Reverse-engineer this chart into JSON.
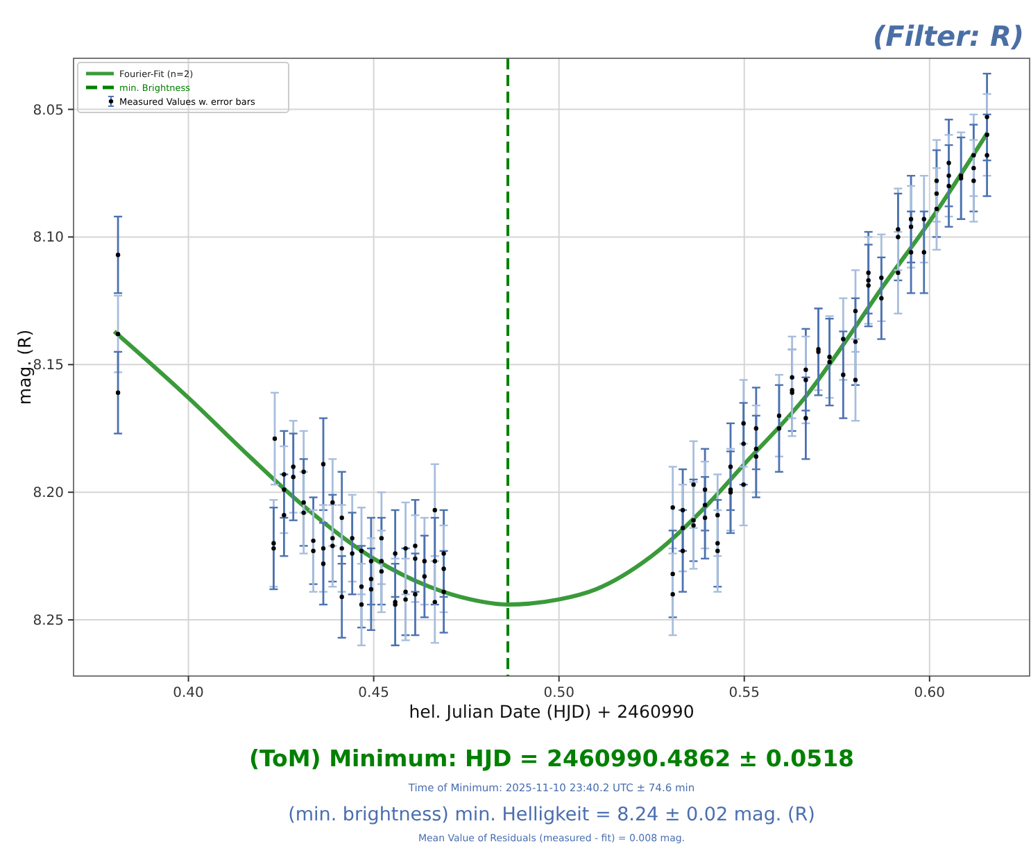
{
  "chart_data": {
    "type": "scatter",
    "title": "(Filter: R)",
    "xlabel": "hel. Julian Date (HJD) + 2460990",
    "ylabel": "mag. (R)",
    "xlim": [
      0.369,
      0.627
    ],
    "xticks": [
      {
        "value": 0.4,
        "label": "0.40"
      },
      {
        "value": 0.45,
        "label": "0.45"
      },
      {
        "value": 0.5,
        "label": "0.50"
      },
      {
        "value": 0.55,
        "label": "0.55"
      },
      {
        "value": 0.6,
        "label": "0.60"
      }
    ],
    "ylim": [
      8.272,
      8.03
    ],
    "yticks": [
      {
        "value": 8.05,
        "label": "8.05"
      },
      {
        "value": 8.1,
        "label": "8.10"
      },
      {
        "value": 8.15,
        "label": "8.15"
      },
      {
        "value": 8.2,
        "label": "8.20"
      },
      {
        "value": 8.25,
        "label": "8.25"
      }
    ],
    "grid": true,
    "legend": "top left",
    "ref_lines": [
      {
        "axis": "x",
        "value": 0.4862,
        "label": "min. Brightness",
        "color": "#008000",
        "line_style": "dashed"
      }
    ],
    "series": [
      {
        "name": "Fourier-Fit (n=2)",
        "type": "line",
        "color": "#3a9a3a",
        "marker": "none",
        "line_style": "solid",
        "x": [
          0.38,
          0.4,
          0.4165,
          0.43,
          0.45,
          0.465,
          0.4762,
          0.4862,
          0.5,
          0.51,
          0.525,
          0.54,
          0.55,
          0.5674,
          0.5749,
          0.5876,
          0.6,
          0.6157
        ],
        "values": [
          8.137,
          8.163,
          8.186,
          8.204,
          8.226,
          8.237,
          8.242,
          8.244,
          8.242,
          8.238,
          8.225,
          8.205,
          8.189,
          8.161,
          8.146,
          8.119,
          8.094,
          8.059
        ]
      },
      {
        "name": "Measured Values w. error bars",
        "color": "#000000",
        "marker": "circle",
        "x": [
          0.381,
          0.381,
          0.381,
          0.423,
          0.423,
          0.4233,
          0.4258,
          0.4258,
          0.4258,
          0.4283,
          0.4283,
          0.4311,
          0.4311,
          0.4311,
          0.4337,
          0.4337,
          0.4364,
          0.4364,
          0.4364,
          0.4389,
          0.4389,
          0.4389,
          0.4414,
          0.4414,
          0.4414,
          0.4442,
          0.4442,
          0.4467,
          0.4467,
          0.4467,
          0.4493,
          0.4493,
          0.4493,
          0.4521,
          0.4521,
          0.4521,
          0.4558,
          0.4558,
          0.4558,
          0.4586,
          0.4586,
          0.4586,
          0.4612,
          0.4612,
          0.4612,
          0.4637,
          0.4637,
          0.4665,
          0.4665,
          0.4665,
          0.4689,
          0.4689,
          0.4689,
          0.5307,
          0.5307,
          0.5307,
          0.5334,
          0.5334,
          0.5334,
          0.5363,
          0.5363,
          0.5363,
          0.5394,
          0.5394,
          0.5394,
          0.5428,
          0.5428,
          0.5428,
          0.5463,
          0.5463,
          0.5463,
          0.5498,
          0.5498,
          0.5498,
          0.5532,
          0.5532,
          0.5532,
          0.5594,
          0.5594,
          0.5629,
          0.5629,
          0.5629,
          0.5666,
          0.5666,
          0.5666,
          0.57,
          0.57,
          0.573,
          0.573,
          0.5767,
          0.5767,
          0.58,
          0.58,
          0.58,
          0.5835,
          0.5835,
          0.5835,
          0.587,
          0.587,
          0.5915,
          0.5915,
          0.5915,
          0.595,
          0.595,
          0.595,
          0.5985,
          0.5985,
          0.6019,
          0.6019,
          0.6019,
          0.6052,
          0.6052,
          0.6052,
          0.6085,
          0.6085,
          0.6119,
          0.6119,
          0.6119,
          0.6155,
          0.6155,
          0.6155
        ],
        "values": [
          8.107,
          8.138,
          8.161,
          8.22,
          8.222,
          8.179,
          8.193,
          8.199,
          8.209,
          8.19,
          8.194,
          8.192,
          8.204,
          8.208,
          8.219,
          8.223,
          8.189,
          8.222,
          8.228,
          8.204,
          8.218,
          8.221,
          8.21,
          8.222,
          8.241,
          8.218,
          8.224,
          8.223,
          8.237,
          8.244,
          8.227,
          8.234,
          8.238,
          8.218,
          8.227,
          8.231,
          8.224,
          8.243,
          8.244,
          8.222,
          8.239,
          8.242,
          8.221,
          8.226,
          8.24,
          8.227,
          8.233,
          8.207,
          8.227,
          8.243,
          8.224,
          8.23,
          8.239,
          8.206,
          8.232,
          8.24,
          8.207,
          8.214,
          8.223,
          8.197,
          8.211,
          8.213,
          8.199,
          8.205,
          8.21,
          8.209,
          8.22,
          8.223,
          8.19,
          8.199,
          8.2,
          8.173,
          8.181,
          8.197,
          8.175,
          8.183,
          8.186,
          8.17,
          8.175,
          8.155,
          8.16,
          8.161,
          8.152,
          8.156,
          8.171,
          8.144,
          8.145,
          8.147,
          8.149,
          8.14,
          8.154,
          8.129,
          8.141,
          8.156,
          8.114,
          8.117,
          8.119,
          8.116,
          8.124,
          8.097,
          8.1,
          8.114,
          8.093,
          8.096,
          8.106,
          8.093,
          8.106,
          8.078,
          8.083,
          8.089,
          8.071,
          8.076,
          8.08,
          8.076,
          8.077,
          8.068,
          8.073,
          8.078,
          8.053,
          8.06,
          8.068
        ],
        "errors": [
          0.015,
          0.015,
          0.016,
          0.017,
          0.016,
          0.018,
          0.017,
          0.017,
          0.016,
          0.018,
          0.017,
          0.016,
          0.017,
          0.016,
          0.017,
          0.016,
          0.018,
          0.017,
          0.016,
          0.017,
          0.017,
          0.016,
          0.018,
          0.017,
          0.016,
          0.017,
          0.016,
          0.017,
          0.016,
          0.016,
          0.017,
          0.016,
          0.016,
          0.018,
          0.017,
          0.016,
          0.017,
          0.017,
          0.016,
          0.018,
          0.017,
          0.016,
          0.018,
          0.017,
          0.016,
          0.017,
          0.016,
          0.018,
          0.017,
          0.016,
          0.017,
          0.017,
          0.016,
          0.016,
          0.017,
          0.016,
          0.016,
          0.017,
          0.016,
          0.017,
          0.016,
          0.017,
          0.016,
          0.017,
          0.016,
          0.016,
          0.017,
          0.016,
          0.017,
          0.016,
          0.016,
          0.017,
          0.016,
          0.016,
          0.016,
          0.017,
          0.016,
          0.016,
          0.017,
          0.016,
          0.016,
          0.017,
          0.016,
          0.017,
          0.016,
          0.016,
          0.017,
          0.016,
          0.017,
          0.016,
          0.017,
          0.016,
          0.017,
          0.016,
          0.016,
          0.017,
          0.016,
          0.017,
          0.016,
          0.016,
          0.017,
          0.016,
          0.017,
          0.016,
          0.016,
          0.017,
          0.016,
          0.016,
          0.017,
          0.016,
          0.017,
          0.016,
          0.016,
          0.017,
          0.016,
          0.016,
          0.017,
          0.016,
          0.017,
          0.016,
          0.016
        ]
      }
    ],
    "annotations": [
      "(ToM) Minimum: HJD = 2460990.4862 ± 0.0518",
      "Time of Minimum:   2025-11-10   23:40.2 UTC ± 74.6 min",
      "(min. brightness) min. Helligkeit = 8.24 ± 0.02 mag. (R)",
      "Mean Value of Residuals (measured - fit) = 0.008 mag."
    ]
  }
}
